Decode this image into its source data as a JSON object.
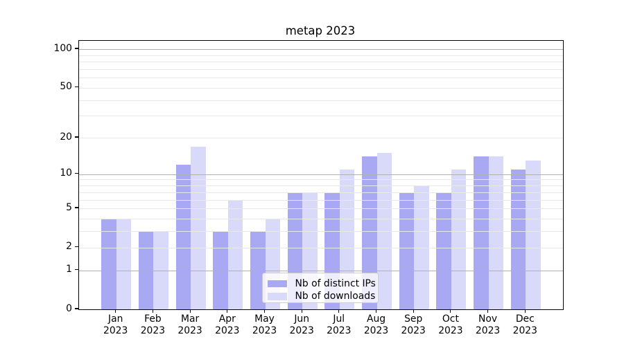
{
  "chart_data": {
    "type": "bar",
    "title": "metap 2023",
    "categories": [
      "Jan 2023",
      "Feb 2023",
      "Mar 2023",
      "Apr 2023",
      "May 2023",
      "Jun 2023",
      "Jul 2023",
      "Aug 2023",
      "Sep 2023",
      "Oct 2023",
      "Nov 2023",
      "Dec 2023"
    ],
    "series": [
      {
        "name": "Nb of distinct IPs",
        "color": "#a8a8f3",
        "values": [
          4,
          3,
          12,
          3,
          3,
          7,
          7,
          14,
          7,
          7,
          14,
          11
        ]
      },
      {
        "name": "Nb of downloads",
        "color": "#d9d9f9",
        "values": [
          4,
          3,
          17,
          6,
          4,
          7,
          11,
          15,
          8,
          11,
          14,
          13
        ]
      }
    ],
    "xlabel": "",
    "ylabel": "",
    "yscale": "log1p",
    "ylim": [
      0,
      117
    ],
    "yticks": [
      0,
      1,
      2,
      5,
      10,
      20,
      50,
      100
    ],
    "grid": {
      "major_values": [
        1,
        10,
        100
      ],
      "minor_values": [
        2,
        3,
        4,
        5,
        6,
        7,
        8,
        9,
        20,
        30,
        40,
        50,
        60,
        70,
        80,
        90
      ],
      "major_color": "#b0b0b0",
      "minor_color": "#e8e8e8"
    },
    "legend": {
      "position": "lower center",
      "entries": [
        "Nb of distinct IPs",
        "Nb of downloads"
      ]
    },
    "colors": {
      "axis": "#000000",
      "background": "#ffffff",
      "legend_border": "#cccccc"
    }
  }
}
